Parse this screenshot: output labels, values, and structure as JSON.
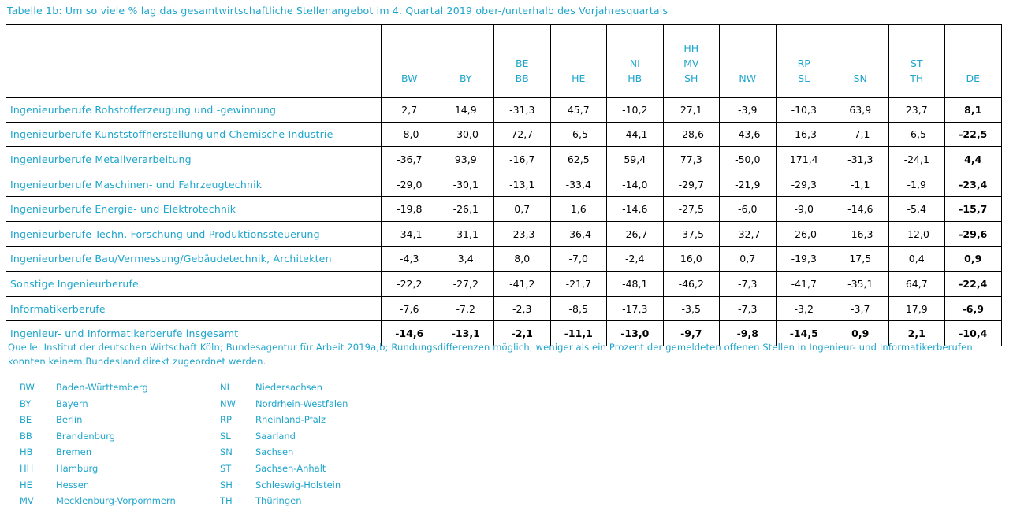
{
  "title": "Tabelle 1b: Um so viele % lag das gesamtwirtschaftliche Stellenangebot im 4. Quartal 2019 ober-/unterhalb des Vorjahresquartals",
  "columns": [
    [
      "BW"
    ],
    [
      "BY"
    ],
    [
      "BE",
      "BB"
    ],
    [
      "HE"
    ],
    [
      "NI",
      "HB"
    ],
    [
      "HH",
      "MV",
      "SH"
    ],
    [
      "NW"
    ],
    [
      "RP",
      "SL"
    ],
    [
      "SN"
    ],
    [
      "ST",
      "TH"
    ],
    [
      "DE"
    ]
  ],
  "rows": [
    {
      "label": "Ingenieurberufe Rohstofferzeugung und -gewinnung",
      "values": [
        "2,7",
        "14,9",
        "-31,3",
        "45,7",
        "-10,2",
        "27,1",
        "-3,9",
        "-10,3",
        "63,9",
        "23,7",
        "8,1"
      ]
    },
    {
      "label": "Ingenieurberufe Kunststoffherstellung und Chemische Industrie",
      "values": [
        "-8,0",
        "-30,0",
        "72,7",
        "-6,5",
        "-44,1",
        "-28,6",
        "-43,6",
        "-16,3",
        "-7,1",
        "-6,5",
        "-22,5"
      ]
    },
    {
      "label": "Ingenieurberufe Metallverarbeitung",
      "values": [
        "-36,7",
        "93,9",
        "-16,7",
        "62,5",
        "59,4",
        "77,3",
        "-50,0",
        "171,4",
        "-31,3",
        "-24,1",
        "4,4"
      ]
    },
    {
      "label": "Ingenieurberufe Maschinen- und Fahrzeugtechnik",
      "values": [
        "-29,0",
        "-30,1",
        "-13,1",
        "-33,4",
        "-14,0",
        "-29,7",
        "-21,9",
        "-29,3",
        "-1,1",
        "-1,9",
        "-23,4"
      ]
    },
    {
      "label": "Ingenieurberufe Energie- und Elektrotechnik",
      "values": [
        "-19,8",
        "-26,1",
        "0,7",
        "1,6",
        "-14,6",
        "-27,5",
        "-6,0",
        "-9,0",
        "-14,6",
        "-5,4",
        "-15,7"
      ]
    },
    {
      "label": "Ingenieurberufe Techn. Forschung und Produktionssteuerung",
      "values": [
        "-34,1",
        "-31,1",
        "-23,3",
        "-36,4",
        "-26,7",
        "-37,5",
        "-32,7",
        "-26,0",
        "-16,3",
        "-12,0",
        "-29,6"
      ]
    },
    {
      "label": "Ingenieurberufe Bau/Vermessung/Gebäudetechnik, Architekten",
      "values": [
        "-4,3",
        "3,4",
        "8,0",
        "-7,0",
        "-2,4",
        "16,0",
        "0,7",
        "-19,3",
        "17,5",
        "0,4",
        "0,9"
      ]
    },
    {
      "label": "Sonstige Ingenieurberufe",
      "values": [
        "-22,2",
        "-27,2",
        "-41,2",
        "-21,7",
        "-48,1",
        "-46,2",
        "-7,3",
        "-41,7",
        "-35,1",
        "64,7",
        "-22,4"
      ]
    },
    {
      "label": "Informatikerberufe",
      "values": [
        "-7,6",
        "-7,2",
        "-2,3",
        "-8,5",
        "-17,3",
        "-3,5",
        "-7,3",
        "-3,2",
        "-3,7",
        "17,9",
        "-6,9"
      ]
    },
    {
      "label": "Ingenieur- und Informatikerberufe insgesamt",
      "values": [
        "-14,6",
        "-13,1",
        "-2,1",
        "-11,1",
        "-13,0",
        "-9,7",
        "-9,8",
        "-14,5",
        "0,9",
        "2,1",
        "-10,4"
      ]
    }
  ],
  "source": "Quelle: Institut der deutschen Wirtschaft Köln; Bundesagentur für Arbeit 2019a,b; Rundungsdifferenzen möglich; weniger als ein Prozent der gemeldeten offenen Stellen in Ingenieur- und Informatikerberufen konnten keinem Bundesland direkt zugeordnet werden.",
  "legend_left": [
    {
      "abbr": "BW",
      "name": "Baden-Württemberg"
    },
    {
      "abbr": "BY",
      "name": "Bayern"
    },
    {
      "abbr": "BE",
      "name": "Berlin"
    },
    {
      "abbr": "BB",
      "name": "Brandenburg"
    },
    {
      "abbr": "HB",
      "name": "Bremen"
    },
    {
      "abbr": "HH",
      "name": "Hamburg"
    },
    {
      "abbr": "HE",
      "name": "Hessen"
    },
    {
      "abbr": "MV",
      "name": "Mecklenburg-Vorpommern"
    }
  ],
  "legend_right": [
    {
      "abbr": "NI",
      "name": "Niedersachsen"
    },
    {
      "abbr": "NW",
      "name": "Nordrhein-Westfalen"
    },
    {
      "abbr": "RP",
      "name": "Rheinland-Pfalz"
    },
    {
      "abbr": "SL",
      "name": "Saarland"
    },
    {
      "abbr": "SN",
      "name": "Sachsen"
    },
    {
      "abbr": "ST",
      "name": "Sachsen-Anhalt"
    },
    {
      "abbr": "SH",
      "name": "Schleswig-Holstein"
    },
    {
      "abbr": "TH",
      "name": "Thüringen"
    }
  ],
  "colors": {
    "accent": "#1ea5cc",
    "text": "#000000",
    "border": "#000000"
  }
}
